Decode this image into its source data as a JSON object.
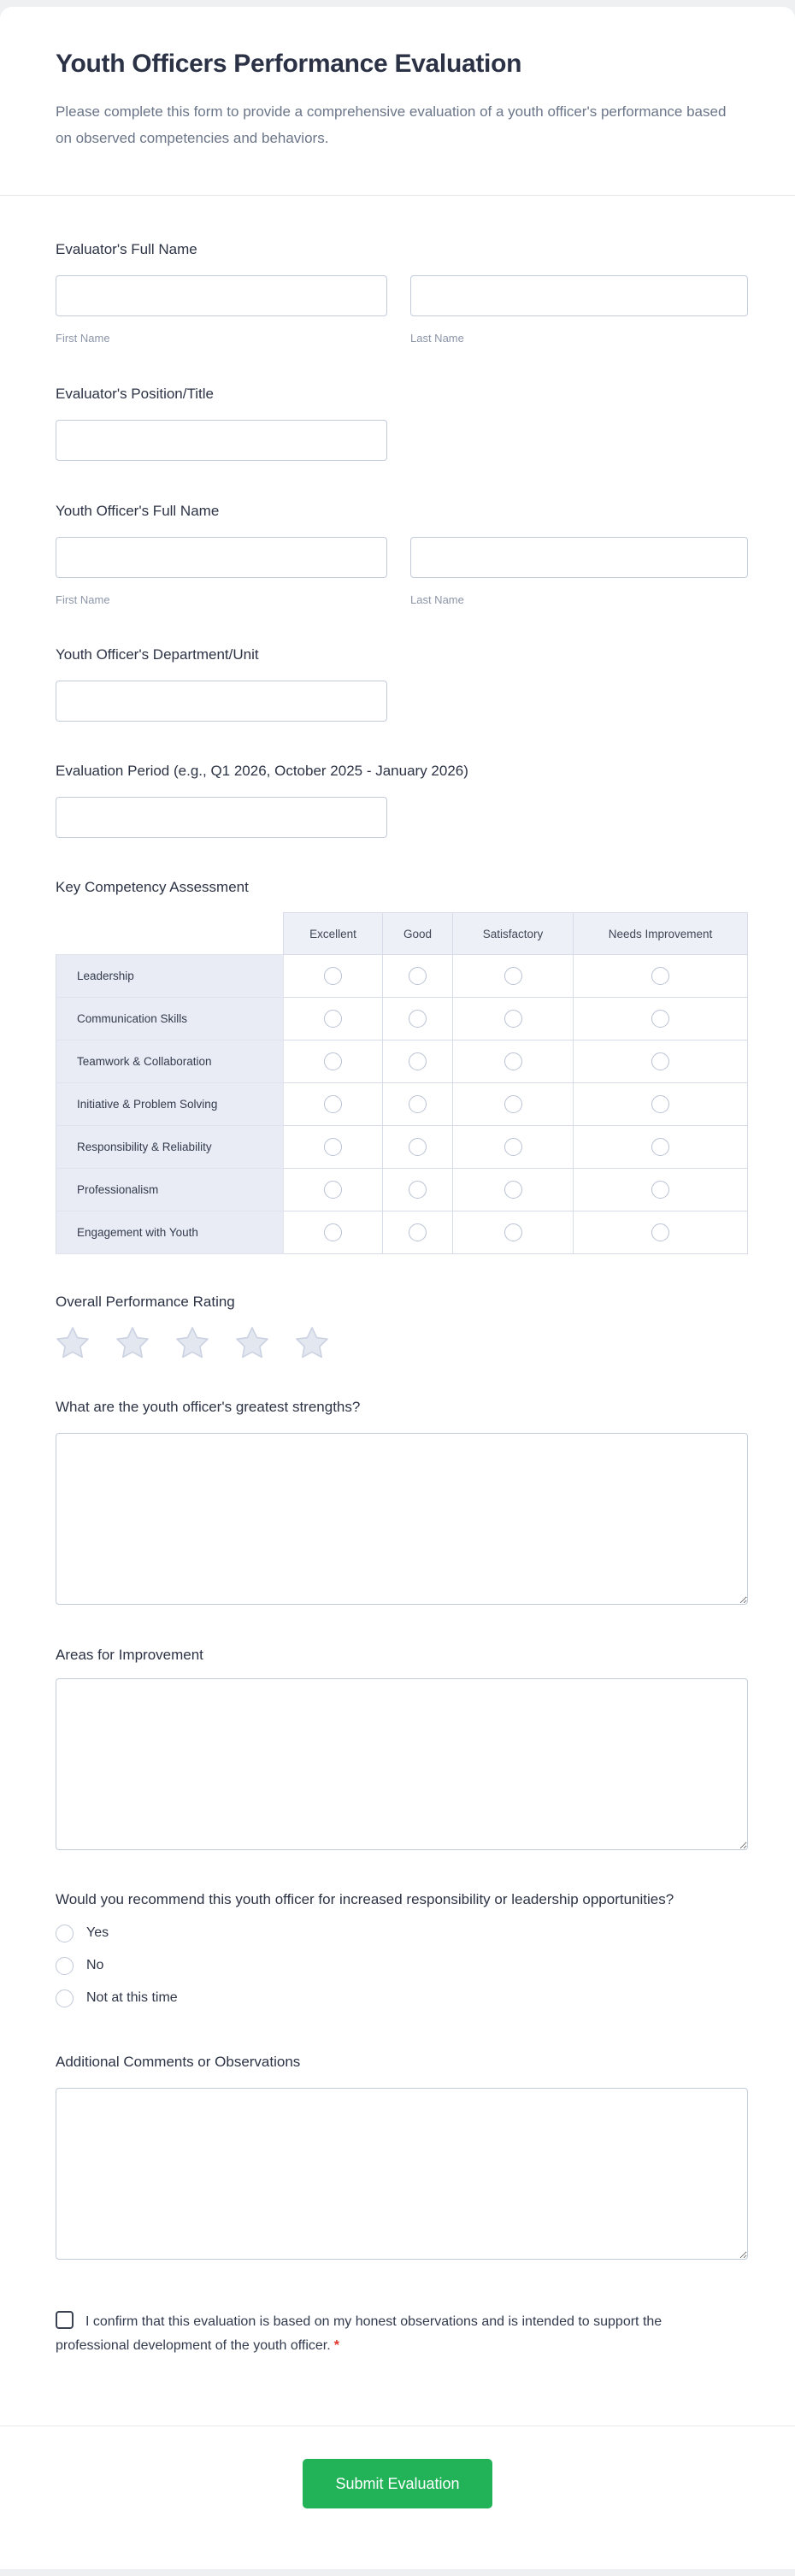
{
  "form": {
    "title": "Youth Officers Performance Evaluation",
    "subtitle": "Please complete this form to provide a comprehensive evaluation of a youth officer's performance based on observed competencies and behaviors.",
    "evaluator_name": {
      "label": "Evaluator's Full Name",
      "first_sublabel": "First Name",
      "last_sublabel": "Last Name",
      "first_value": "",
      "last_value": ""
    },
    "evaluator_position": {
      "label": "Evaluator's Position/Title",
      "value": ""
    },
    "officer_name": {
      "label": "Youth Officer's Full Name",
      "first_sublabel": "First Name",
      "last_sublabel": "Last Name",
      "first_value": "",
      "last_value": ""
    },
    "officer_department": {
      "label": "Youth Officer's Department/Unit",
      "value": ""
    },
    "evaluation_period": {
      "label": "Evaluation Period (e.g., Q1 2026, October 2025 - January 2026)",
      "value": ""
    },
    "competency_table": {
      "label": "Key Competency Assessment",
      "columns": [
        "Excellent",
        "Good",
        "Satisfactory",
        "Needs Improvement"
      ],
      "rows": [
        "Leadership",
        "Communication Skills",
        "Teamwork & Collaboration",
        "Initiative & Problem Solving",
        "Responsibility & Reliability",
        "Professionalism",
        "Engagement with Youth"
      ],
      "selected": []
    },
    "overall_rating": {
      "label": "Overall Performance Rating",
      "star_count": 5,
      "value": 0
    },
    "strengths": {
      "label": "What are the youth officer's greatest strengths?",
      "value": ""
    },
    "improvement": {
      "label": "Areas for Improvement",
      "value": ""
    },
    "recommend": {
      "label": "Would you recommend this youth officer for increased responsibility or leadership opportunities?",
      "options": [
        "Yes",
        "No",
        "Not at this time"
      ],
      "selected": ""
    },
    "comments": {
      "label": "Additional Comments or Observations",
      "value": ""
    },
    "confirmation": {
      "label": "I confirm that this evaluation is based on my honest observations and is intended to support the professional development of the youth officer.",
      "required_marker": "*",
      "checked": false
    },
    "submit": {
      "label": "Submit Evaluation"
    },
    "colors": {
      "accent_green": "#22b258",
      "required_red": "#e0342c",
      "star_fill": "#e3e7f0",
      "star_stroke": "#cbd2e1"
    }
  }
}
